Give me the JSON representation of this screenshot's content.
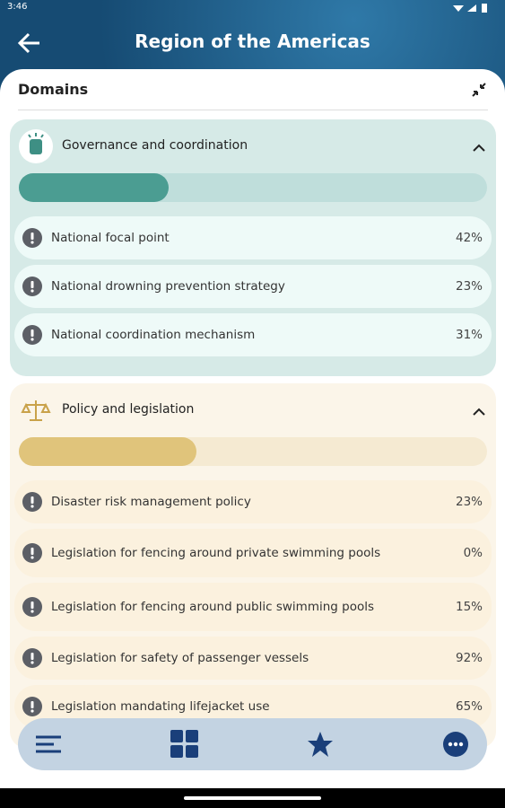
{
  "status_bar": {
    "time": "3:46"
  },
  "header": {
    "title": "Region of the Americas"
  },
  "card": {
    "title": "Domains"
  },
  "domains": [
    {
      "name": "Governance and coordination",
      "progress": 32,
      "items": [
        {
          "label": "National focal point",
          "value": "42%"
        },
        {
          "label": "National drowning prevention strategy",
          "value": "23%"
        },
        {
          "label": "National coordination mechanism",
          "value": "31%"
        }
      ]
    },
    {
      "name": "Policy and legislation",
      "progress": 38,
      "items": [
        {
          "label": "Disaster risk management policy",
          "value": "23%"
        },
        {
          "label": "Legislation for fencing around private swimming pools",
          "value": "0%"
        },
        {
          "label": "Legislation for fencing around public swimming pools",
          "value": "15%"
        },
        {
          "label": "Legislation for safety of passenger vessels",
          "value": "92%"
        },
        {
          "label": "Legislation mandating lifejacket use",
          "value": "65%"
        }
      ]
    }
  ]
}
